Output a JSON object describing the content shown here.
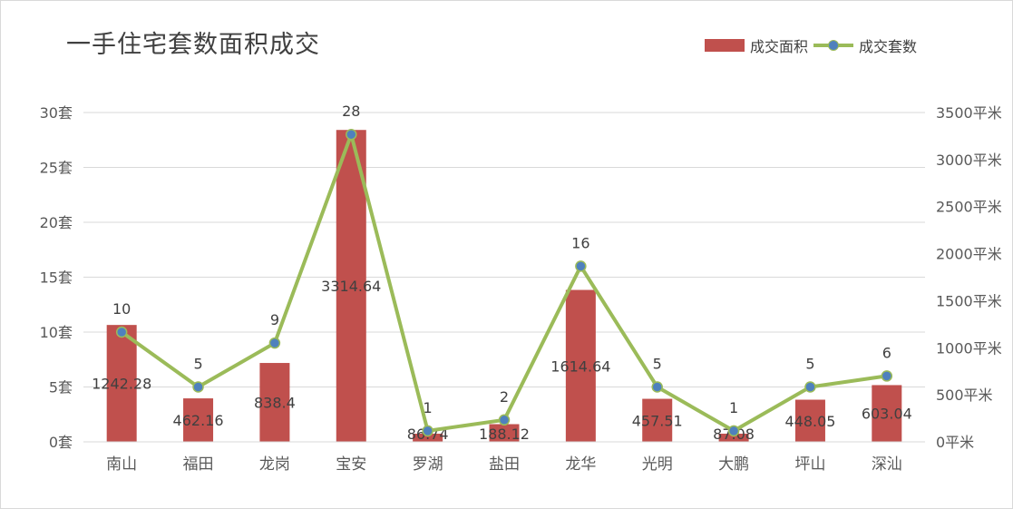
{
  "chart_data": {
    "type": "bar",
    "title": "一手住宅套数面积成交",
    "categories": [
      "南山",
      "福田",
      "龙岗",
      "宝安",
      "罗湖",
      "盐田",
      "龙华",
      "光明",
      "大鹏",
      "坪山",
      "深汕"
    ],
    "series": [
      {
        "name": "成交面积",
        "type": "bar",
        "axis": "right",
        "color": "#c0504d",
        "values": [
          1242.28,
          462.16,
          838.4,
          3314.64,
          86.74,
          188.12,
          1614.64,
          457.51,
          87.08,
          448.05,
          603.04
        ],
        "labels": [
          "1242.28",
          "462.16",
          "838.4",
          "3314.64",
          "86.74",
          "188.12",
          "1614.64",
          "457.51",
          "87.08",
          "448.05",
          "603.04"
        ]
      },
      {
        "name": "成交套数",
        "type": "line",
        "axis": "left",
        "color": "#9bbb59",
        "marker_color": "#4f81bd",
        "values": [
          10,
          5,
          9,
          28,
          1,
          2,
          16,
          5,
          1,
          5,
          6
        ],
        "labels": [
          "10",
          "5",
          "9",
          "28",
          "1",
          "2",
          "16",
          "5",
          "1",
          "5",
          "6"
        ]
      }
    ],
    "y_left": {
      "ylim": [
        0,
        30
      ],
      "ticks": [
        "0套",
        "5套",
        "10套",
        "15套",
        "20套",
        "25套",
        "30套"
      ]
    },
    "y_right": {
      "ylim": [
        0,
        3500
      ],
      "ticks": [
        "0平米",
        "500平米",
        "1000平米",
        "1500平米",
        "2000平米",
        "2500平米",
        "3000平米",
        "3500平米"
      ]
    },
    "grid": true,
    "legend": "top-right"
  }
}
